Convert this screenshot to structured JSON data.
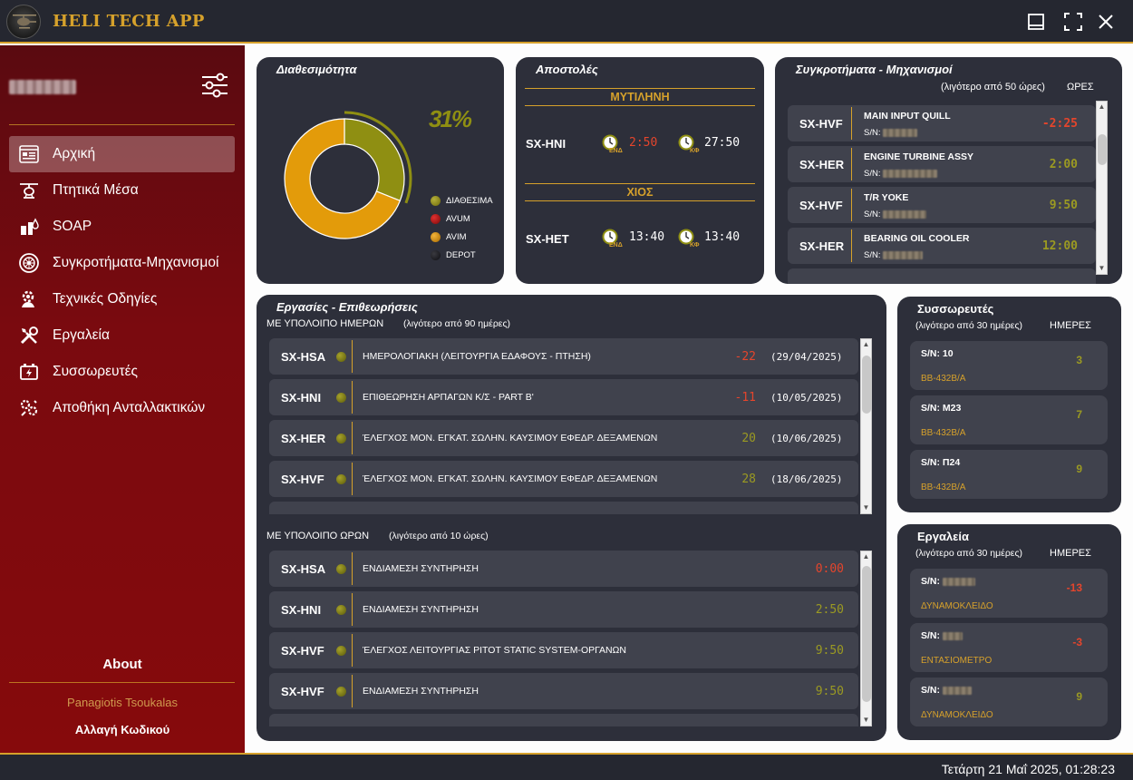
{
  "app": {
    "title": "HELI TECH APP"
  },
  "sidebar": {
    "items": [
      {
        "label": "Αρχική",
        "icon": "dashboard-icon",
        "active": true
      },
      {
        "label": "Πτητικά Μέσα",
        "icon": "helicopter-icon"
      },
      {
        "label": "SOAP",
        "icon": "soap-icon"
      },
      {
        "label": "Συγκροτήματα-Μηχανισμοί",
        "icon": "engine-icon"
      },
      {
        "label": "Τεχνικές Οδηγίες",
        "icon": "gear-person-icon"
      },
      {
        "label": "Εργαλεία",
        "icon": "tools-icon"
      },
      {
        "label": "Συσσωρευτές",
        "icon": "battery-icon"
      },
      {
        "label": "Αποθήκη Ανταλλακτικών",
        "icon": "warehouse-icon"
      }
    ],
    "about": "About",
    "author": "Panagiotis Tsoukalas",
    "change_password": "Αλλαγή Κωδικού"
  },
  "availability": {
    "title": "Διαθεσιμότητα",
    "percent_label": "31%",
    "legend": [
      {
        "label": "ΔΙΑΘΕΣΙΜΑ",
        "color": "#8f8f12"
      },
      {
        "label": "AVUM",
        "color": "#b01010"
      },
      {
        "label": "AVIM",
        "color": "#e39b0a"
      },
      {
        "label": "DEPOT",
        "color": "#1a1a1e"
      }
    ],
    "chart_data": {
      "type": "pie",
      "categories": [
        "ΔΙΑΘΕΣΙΜΑ",
        "AVUM",
        "AVIM",
        "DEPOT"
      ],
      "values": [
        31,
        0,
        69,
        0
      ],
      "unit": "%"
    }
  },
  "missions": {
    "title": "Αποστολές",
    "locations": [
      {
        "name": "ΜΥΤΙΛΗΝΗ",
        "aircraft": "SX-HNI",
        "end_label": "ΕΝΔ",
        "end_time": "2:50",
        "kf_label": "ΚΦ",
        "kf_time": "27:50"
      },
      {
        "name": "ΧΙΟΣ",
        "aircraft": "SX-HET",
        "end_label": "ΕΝΔ",
        "end_time": "13:40",
        "kf_label": "ΚΦ",
        "kf_time": "13:40"
      }
    ]
  },
  "assemblies": {
    "title": "Συγκροτήματα - Μηχανισμοί",
    "subtitle": "(λιγότερο από 50 ώρες)",
    "unit_header": "ΩΡΕΣ",
    "sn_label": "S/N:",
    "rows": [
      {
        "aircraft": "SX-HVF",
        "name": "MAIN INPUT QUILL",
        "value": "-2:25",
        "status": "red"
      },
      {
        "aircraft": "SX-HER",
        "name": "ENGINE TURBINE ASSY",
        "value": "2:00",
        "status": "green"
      },
      {
        "aircraft": "SX-HVF",
        "name": "T/R YOKE",
        "value": "9:50",
        "status": "green"
      },
      {
        "aircraft": "SX-HER",
        "name": "BEARING OIL COOLER",
        "value": "12:00",
        "status": "green"
      }
    ]
  },
  "tasks": {
    "title": "Εργασίες - Επιθεωρήσεις",
    "days_section": {
      "label": "ΜΕ ΥΠΟΛΟΙΠΟ ΗΜΕΡΩΝ",
      "note": "(λιγότερο από 90 ημέρες)"
    },
    "days_rows": [
      {
        "aircraft": "SX-HSA",
        "desc": "ΗΜΕΡΟΛΟΓΙΑΚΗ (ΛΕΙΤΟΥΡΓΙΑ ΕΔΑΦΟΥΣ - ΠΤΗΣΗ)",
        "value": "-22",
        "date": "(29/04/2025)",
        "status": "red"
      },
      {
        "aircraft": "SX-HNI",
        "desc": "ΕΠΙΘΕΩΡΗΣΗ ΑΡΠΑΓΩΝ Κ/Σ - PART B'",
        "value": "-11",
        "date": "(10/05/2025)",
        "status": "red"
      },
      {
        "aircraft": "SX-HER",
        "desc": "ΈΛΕΓΧΟΣ ΜΟΝ. ΕΓΚΑΤ. ΣΩΛΗΝ. ΚΑΥΣΙΜΟΥ ΕΦΕΔΡ. ΔΕΞΑΜΕΝΩΝ",
        "value": "20",
        "date": "(10/06/2025)",
        "status": "green"
      },
      {
        "aircraft": "SX-HVF",
        "desc": "ΈΛΕΓΧΟΣ ΜΟΝ. ΕΓΚΑΤ. ΣΩΛΗΝ. ΚΑΥΣΙΜΟΥ ΕΦΕΔΡ. ΔΕΞΑΜΕΝΩΝ",
        "value": "28",
        "date": "(18/06/2025)",
        "status": "green"
      }
    ],
    "hours_section": {
      "label": "ΜΕ ΥΠΟΛΟΙΠΟ ΩΡΩΝ",
      "note": "(λιγότερο από 10 ώρες)"
    },
    "hours_rows": [
      {
        "aircraft": "SX-HSA",
        "desc": "ΕΝΔΙΑΜΕΣΗ ΣΥΝΤΗΡΗΣΗ",
        "value": "0:00",
        "status": "red"
      },
      {
        "aircraft": "SX-HNI",
        "desc": "ΕΝΔΙΑΜΕΣΗ ΣΥΝΤΗΡΗΣΗ",
        "value": "2:50",
        "status": "green"
      },
      {
        "aircraft": "SX-HVF",
        "desc": "ΈΛΕΓΧΟΣ ΛΕΙΤΟΥΡΓΙΑΣ PITOT STATIC SYSTEM-ΟΡΓΑΝΩΝ",
        "value": "9:50",
        "status": "green"
      },
      {
        "aircraft": "SX-HVF",
        "desc": "ΕΝΔΙΑΜΕΣΗ ΣΥΝΤΗΡΗΣΗ",
        "value": "9:50",
        "status": "green"
      }
    ]
  },
  "batteries": {
    "title": "Συσσωρευτές",
    "subtitle": "(λιγότερο από 30 ημέρες)",
    "unit_header": "ΗΜΕΡΕΣ",
    "items": [
      {
        "sn": "S/N: 10",
        "type": "BB-432B/A",
        "value": "3",
        "status": "green"
      },
      {
        "sn": "S/N: M23",
        "type": "BB-432B/A",
        "value": "7",
        "status": "green"
      },
      {
        "sn": "S/N: Π24",
        "type": "BB-432B/A",
        "value": "9",
        "status": "green"
      }
    ]
  },
  "tools": {
    "title": "Εργαλεία",
    "subtitle": "(λιγότερο από 30 ημέρες)",
    "unit_header": "ΗΜΕΡΕΣ",
    "sn_label": "S/N:",
    "items": [
      {
        "type": "ΔΥΝΑΜΟΚΛΕΙΔΟ",
        "value": "-13",
        "status": "red"
      },
      {
        "type": "ΕΝΤΑΣΙΟΜΕΤΡΟ",
        "value": "-3",
        "status": "red"
      },
      {
        "type": "ΔΥΝΑΜΟΚΛΕΙΔΟ",
        "value": "9",
        "status": "green"
      }
    ]
  },
  "status": {
    "datetime": "Τετάρτη 21 Μαΐ 2025, 01:28:23"
  }
}
